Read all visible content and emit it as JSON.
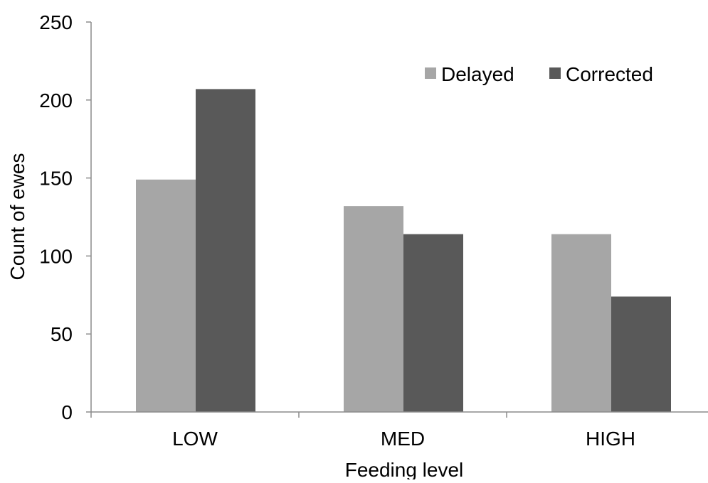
{
  "chart_data": {
    "type": "bar",
    "title": "",
    "xlabel": "Feeding level",
    "ylabel": "Count of ewes",
    "categories": [
      "LOW",
      "MED",
      "HIGH"
    ],
    "series": [
      {
        "name": "Delayed",
        "values": [
          149,
          132,
          114
        ],
        "color": "#a6a6a6"
      },
      {
        "name": "Corrected",
        "values": [
          207,
          114,
          74
        ],
        "color": "#595959"
      }
    ],
    "ylim": [
      0,
      250
    ],
    "yticks": [
      "0",
      "50",
      "100",
      "150",
      "200",
      "250"
    ],
    "grid": false,
    "legend": "top-right",
    "axis_color": "#8c8c8c"
  }
}
